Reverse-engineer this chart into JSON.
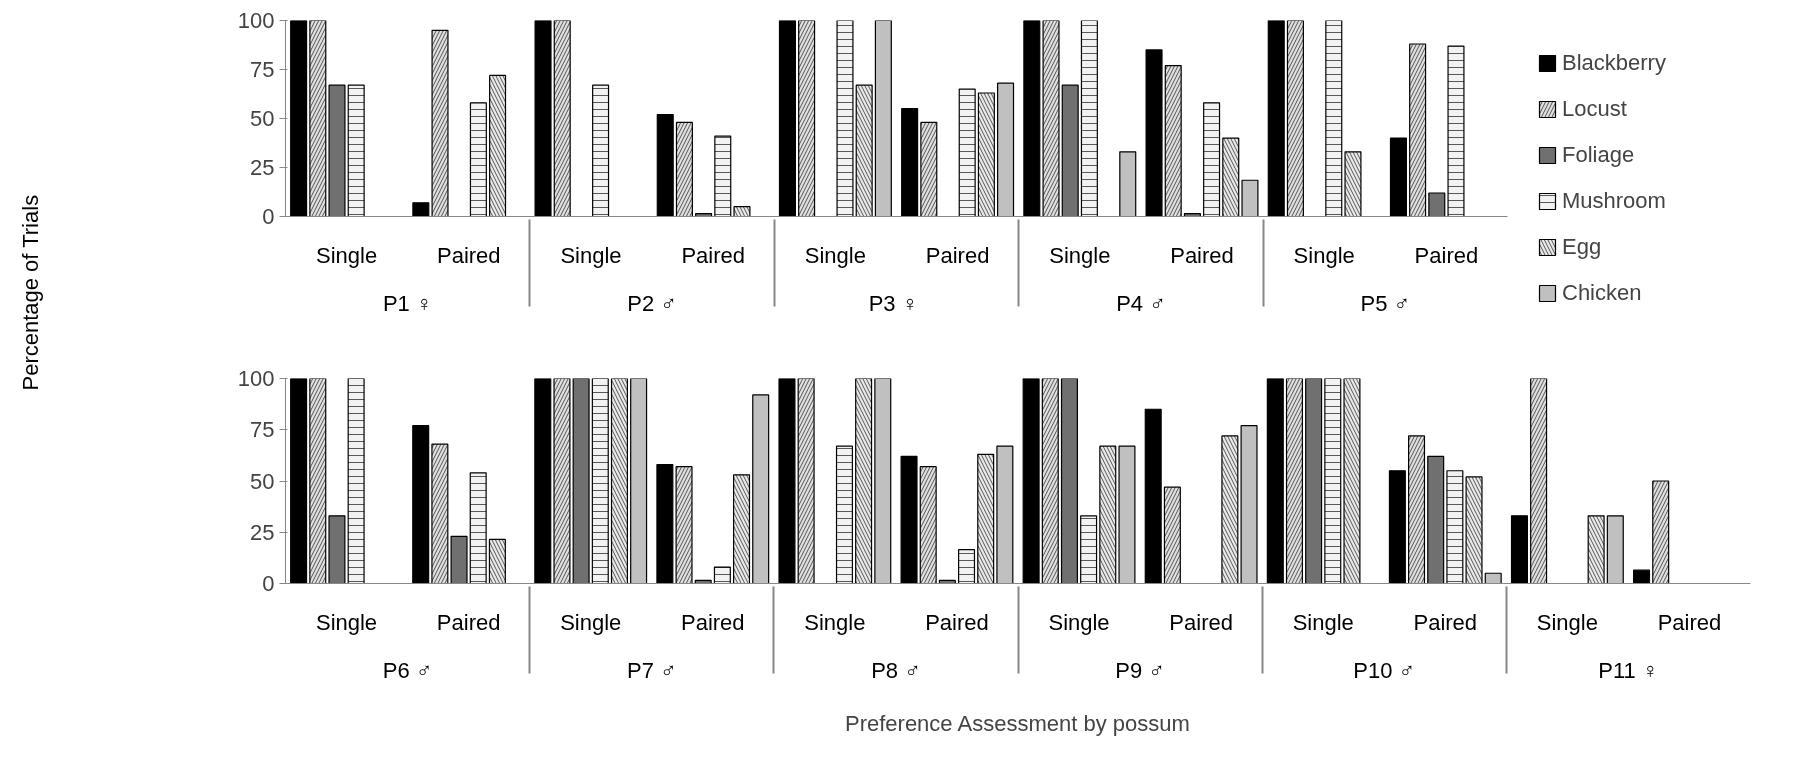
{
  "chart_data": [
    {
      "type": "bar",
      "ylabel": "Percentage of Trials",
      "categories": [
        "Single",
        "Paired",
        "Single",
        "Paired",
        "Single",
        "Paired",
        "Single",
        "Paired",
        "Single",
        "Paired"
      ],
      "annotations": [
        "P1 ♀",
        "P2 ♂",
        "P3  ♀",
        "P4 ♂",
        "P5 ♂"
      ],
      "ylim": [
        0,
        100
      ],
      "yticks": [
        0,
        25,
        50,
        75,
        100
      ],
      "legend": "right",
      "series": [
        {
          "name": "Blackberry",
          "color": "#000000",
          "values": [
            100,
            7,
            100,
            52,
            100,
            55,
            100,
            85,
            100,
            40
          ]
        },
        {
          "name": "Locust",
          "color": "#e0e0e0",
          "values": [
            100,
            95,
            100,
            48,
            100,
            48,
            100,
            77,
            100,
            88
          ]
        },
        {
          "name": "Foliage",
          "color": "#707070",
          "values": [
            67,
            null,
            null,
            1.5,
            null,
            null,
            67,
            1.5,
            null,
            12
          ]
        },
        {
          "name": "Mushroom",
          "color": "#f2f2f2",
          "values": [
            67,
            58,
            67,
            41,
            100,
            65,
            100,
            58,
            100,
            87
          ]
        },
        {
          "name": "Egg",
          "color": "#e9e9e9",
          "values": [
            null,
            72,
            null,
            5,
            67,
            63,
            null,
            40,
            33,
            null
          ]
        },
        {
          "name": "Chicken",
          "color": "#c0c0c0",
          "values": [
            null,
            null,
            null,
            null,
            100,
            68,
            33,
            18.5,
            null,
            null
          ]
        }
      ]
    },
    {
      "type": "bar",
      "xlabel": "Preference Assessment by possum",
      "categories": [
        "Single",
        "Paired",
        "Single",
        "Paired",
        "Single",
        "Paired",
        "Single",
        "Paired",
        "Single",
        "Paired",
        "Single",
        "Paired"
      ],
      "annotations": [
        "P6 ♂",
        "P7 ♂",
        "P8 ♂",
        "P9 ♂",
        "P10 ♂",
        "P11 ♀"
      ],
      "ylim": [
        0,
        100
      ],
      "yticks": [
        0,
        25,
        50,
        75,
        100
      ],
      "series": [
        {
          "color": "#000000",
          "values": [
            100,
            77,
            100,
            58,
            100,
            62,
            100,
            85,
            100,
            55,
            33,
            6.5
          ]
        },
        {
          "color": "#e0e0e0",
          "values": [
            100,
            68,
            100,
            57,
            100,
            57,
            100,
            47,
            100,
            72,
            100,
            50
          ]
        },
        {
          "color": "#707070",
          "values": [
            33,
            23,
            100,
            1.5,
            null,
            1.5,
            100,
            null,
            100,
            62,
            null,
            null
          ]
        },
        {
          "color": "#f2f2f2",
          "values": [
            100,
            54,
            100,
            8,
            67,
            16.5,
            33,
            null,
            100,
            55,
            null,
            null
          ]
        },
        {
          "color": "#e9e9e9",
          "values": [
            null,
            21.5,
            100,
            53,
            100,
            63,
            67,
            72,
            100,
            52,
            33,
            null
          ]
        },
        {
          "color": "#c0c0c0",
          "values": [
            null,
            null,
            100,
            92,
            100,
            67,
            67,
            77,
            null,
            5,
            33,
            null
          ]
        }
      ]
    }
  ]
}
